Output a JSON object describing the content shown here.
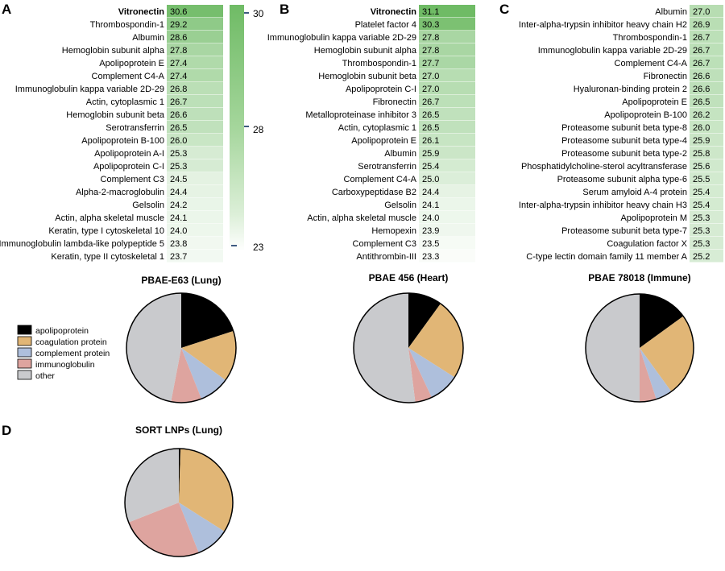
{
  "panels": {
    "A": "A",
    "B": "B",
    "C": "C",
    "D": "D"
  },
  "colorbar": {
    "ticks": [
      30,
      28,
      23
    ],
    "high_color": "#79bf6f",
    "low_color": "#ffffff"
  },
  "chart_data": [
    {
      "type": "table",
      "panel": "A",
      "title": "",
      "bold_rows": [
        "Vitronectin"
      ],
      "rows": [
        [
          "Vitronectin",
          30.6
        ],
        [
          "Thrombospondin-1",
          29.2
        ],
        [
          "Albumin",
          28.6
        ],
        [
          "Hemoglobin subunit alpha",
          27.8
        ],
        [
          "Apolipoprotein E",
          27.4
        ],
        [
          "Complement C4-A",
          27.4
        ],
        [
          "Immunoglobulin kappa variable 2D-29",
          26.8
        ],
        [
          "Actin, cytoplasmic 1",
          26.7
        ],
        [
          "Hemoglobin subunit beta",
          26.6
        ],
        [
          "Serotransferrin",
          26.5
        ],
        [
          "Apolipoprotein B-100",
          26.0
        ],
        [
          "Apolipoprotein A-I",
          25.3
        ],
        [
          "Apolipoprotein C-I",
          25.3
        ],
        [
          "Complement C3",
          24.5
        ],
        [
          "Alpha-2-macroglobulin",
          24.4
        ],
        [
          "Gelsolin",
          24.2
        ],
        [
          "Actin, alpha skeletal muscle",
          24.1
        ],
        [
          "Keratin, type I cytoskeletal 10",
          24.0
        ],
        [
          "Immunoglobulin lambda-like polypeptide 5",
          23.8
        ],
        [
          "Keratin, type II cytoskeletal 1",
          23.7
        ]
      ]
    },
    {
      "type": "table",
      "panel": "B",
      "title": "",
      "bold_rows": [
        "Vitronectin"
      ],
      "rows": [
        [
          "Vitronectin",
          31.1
        ],
        [
          "Platelet factor 4",
          30.3
        ],
        [
          "Immunoglobulin kappa variable 2D-29",
          27.8
        ],
        [
          "Hemoglobin subunit alpha",
          27.8
        ],
        [
          "Thrombospondin-1",
          27.7
        ],
        [
          "Hemoglobin subunit beta",
          27.0
        ],
        [
          "Apolipoprotein C-I",
          27.0
        ],
        [
          "Fibronectin",
          26.7
        ],
        [
          "Metalloproteinase inhibitor 3",
          26.5
        ],
        [
          "Actin, cytoplasmic 1",
          26.5
        ],
        [
          "Apolipoprotein E",
          26.1
        ],
        [
          "Albumin",
          25.9
        ],
        [
          "Serotransferrin",
          25.4
        ],
        [
          "Complement C4-A",
          25.0
        ],
        [
          "Carboxypeptidase B2",
          24.4
        ],
        [
          "Gelsolin",
          24.1
        ],
        [
          "Actin, alpha skeletal muscle",
          24.0
        ],
        [
          "Hemopexin",
          23.9
        ],
        [
          "Complement C3",
          23.5
        ],
        [
          "Antithrombin-III",
          23.3
        ]
      ]
    },
    {
      "type": "table",
      "panel": "C",
      "title": "",
      "bold_rows": [],
      "rows": [
        [
          "Albumin",
          27.0
        ],
        [
          "Inter-alpha-trypsin inhibitor heavy chain H2",
          26.9
        ],
        [
          "Thrombospondin-1",
          26.7
        ],
        [
          "Immunoglobulin kappa variable 2D-29",
          26.7
        ],
        [
          "Complement C4-A",
          26.7
        ],
        [
          "Fibronectin",
          26.6
        ],
        [
          "Hyaluronan-binding protein 2",
          26.6
        ],
        [
          "Apolipoprotein E",
          26.5
        ],
        [
          "Apolipoprotein B-100",
          26.2
        ],
        [
          "Proteasome subunit beta type-8",
          26.0
        ],
        [
          "Proteasome subunit beta type-4",
          25.9
        ],
        [
          "Proteasome subunit beta type-2",
          25.8
        ],
        [
          "Phosphatidylcholine-sterol acyltransferase",
          25.6
        ],
        [
          "Proteasome subunit alpha type-6",
          25.5
        ],
        [
          "Serum amyloid A-4 protein",
          25.4
        ],
        [
          "Inter-alpha-trypsin inhibitor heavy chain H3",
          25.4
        ],
        [
          "Apolipoprotein M",
          25.3
        ],
        [
          "Proteasome subunit beta type-7",
          25.3
        ],
        [
          "Coagulation factor X",
          25.3
        ],
        [
          "C-type lectin domain family 11 member A",
          25.2
        ]
      ]
    },
    {
      "type": "pie",
      "panel": "A",
      "title": "PBAE-E63 (Lung)",
      "categories": [
        "apolipoprotein",
        "coagulation protein",
        "complement protein",
        "immunoglobulin",
        "other"
      ],
      "values": [
        20,
        15,
        9,
        9,
        47
      ]
    },
    {
      "type": "pie",
      "panel": "B",
      "title": "PBAE 456 (Heart)",
      "categories": [
        "apolipoprotein",
        "coagulation protein",
        "complement protein",
        "immunoglobulin",
        "other"
      ],
      "values": [
        10,
        24,
        9,
        5,
        52
      ]
    },
    {
      "type": "pie",
      "panel": "C",
      "title": "PBAE 78018 (Immune)",
      "categories": [
        "apolipoprotein",
        "coagulation protein",
        "complement protein",
        "immunoglobulin",
        "other"
      ],
      "values": [
        15,
        25,
        5,
        5,
        50
      ]
    },
    {
      "type": "pie",
      "panel": "D",
      "title": "SORT LNPs (Lung)",
      "categories": [
        "apolipoprotein",
        "coagulation protein",
        "complement protein",
        "immunoglobulin",
        "other"
      ],
      "values": [
        0.5,
        33.5,
        10,
        25,
        31
      ]
    }
  ],
  "legend": {
    "items": [
      {
        "label": "apolipoprotein",
        "color": "#000000"
      },
      {
        "label": "coagulation protein",
        "color": "#e1b676"
      },
      {
        "label": "complement protein",
        "color": "#aebfdc"
      },
      {
        "label": "immunoglobulin",
        "color": "#dea49f"
      },
      {
        "label": "other",
        "color": "#c9cacd"
      }
    ]
  }
}
